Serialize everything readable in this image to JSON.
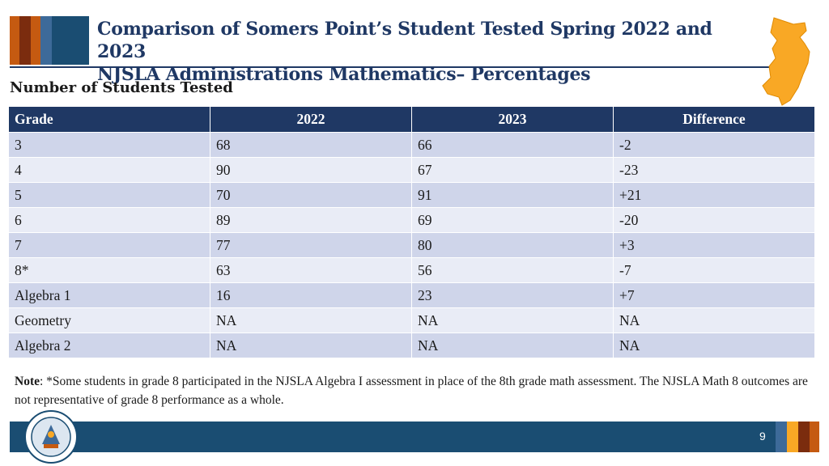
{
  "header": {
    "title_line1": "Comparison of Somers Point’s Student Tested Spring 2022 and 2023",
    "title_line2": "NJSLA Administrations Mathematics– Percentages",
    "stripe_colors": [
      "#c55a11",
      "#7b2c0e",
      "#3d6a99",
      "#1a4d72"
    ]
  },
  "subtitle": "Number of Students Tested",
  "table": {
    "headers": [
      "Grade",
      "2022",
      "2023",
      "Difference"
    ],
    "rows": [
      [
        "3",
        "68",
        "66",
        "-2"
      ],
      [
        "4",
        "90",
        "67",
        "-23"
      ],
      [
        "5",
        "70",
        "91",
        "+21"
      ],
      [
        "6",
        "89",
        "69",
        "-20"
      ],
      [
        "7",
        "77",
        "80",
        "+3"
      ],
      [
        "8*",
        "63",
        "56",
        "-7"
      ],
      [
        "Algebra 1",
        "16",
        "23",
        "+7"
      ],
      [
        "Geometry",
        "NA",
        "NA",
        "NA"
      ],
      [
        "Algebra 2",
        "NA",
        "NA",
        "NA"
      ]
    ]
  },
  "note": {
    "label": "Note",
    "text": ": *Some students in grade 8 participated in the NJSLA Algebra I assessment in place of the 8th grade math assessment. The NJSLA Math 8 outcomes are not representative of grade 8 performance as a whole."
  },
  "footer": {
    "page_number": "9",
    "seal_icon": "nj-department-of-education-seal-icon",
    "map_icon": "new-jersey-state-map-icon"
  },
  "colors": {
    "header_navy": "#1f3864",
    "row_odd": "#cfd5ea",
    "row_even": "#e9ecf6",
    "footer_blue": "#1a4d72",
    "nj_orange": "#f9a825"
  }
}
